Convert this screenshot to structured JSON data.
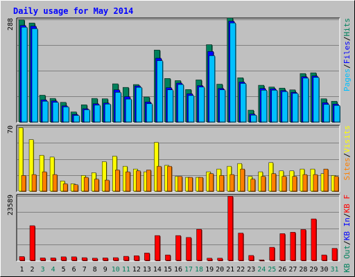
{
  "chart_data": {
    "type": "bar",
    "title": "Daily usage for May 2014",
    "categories": [
      "1",
      "2",
      "3",
      "4",
      "5",
      "6",
      "7",
      "8",
      "9",
      "10",
      "11",
      "12",
      "13",
      "14",
      "15",
      "16",
      "17",
      "18",
      "19",
      "20",
      "21",
      "22",
      "23",
      "24",
      "25",
      "26",
      "27",
      "28",
      "29",
      "30",
      "31"
    ],
    "weekend_days": [
      3,
      4,
      10,
      11,
      17,
      18,
      24,
      25,
      31
    ],
    "panels": [
      {
        "id": "top",
        "ymax_label": "288",
        "ylim": [
          0,
          288
        ],
        "legend": [
          {
            "text": "Hits",
            "color": "#00805c"
          },
          {
            "text": "/",
            "color": "#000000"
          },
          {
            "text": "Files",
            "color": "#0000ff"
          },
          {
            "text": "/",
            "color": "#000000"
          },
          {
            "text": "Pages",
            "color": "#00c0ff"
          }
        ],
        "series": [
          {
            "name": "Hits",
            "color": "#00805c",
            "values": [
              287,
              278,
              75,
              66,
              55,
              28,
              48,
              66,
              65,
              107,
              97,
              105,
              70,
              202,
              122,
              116,
              91,
              118,
              217,
              106,
              292,
              124,
              33,
              103,
              98,
              95,
              90,
              136,
              138,
              65,
              58
            ]
          },
          {
            "name": "Files",
            "color": "#0000ff",
            "values": [
              271,
              269,
              62,
              59,
              45,
              21,
              37,
              51,
              53,
              90,
              71,
              101,
              56,
              179,
              96,
              109,
              79,
              102,
              198,
              94,
              283,
              112,
              22,
              94,
              93,
              88,
              83,
              127,
              129,
              54,
              50
            ]
          },
          {
            "name": "Pages",
            "color": "#00c0ff",
            "values": [
              266,
              262,
              58,
              55,
              42,
              18,
              34,
              47,
              50,
              83,
              64,
              97,
              51,
              172,
              90,
              105,
              74,
              98,
              186,
              90,
              278,
              108,
              19,
              89,
              89,
              85,
              80,
              123,
              125,
              49,
              46
            ]
          }
        ]
      },
      {
        "id": "mid",
        "ymax_label": "70",
        "ylim": [
          0,
          70
        ],
        "legend": [
          {
            "text": "Visits",
            "color": "#ffff00"
          },
          {
            "text": "/",
            "color": "#000000"
          },
          {
            "text": "Sites",
            "color": "#ff8000"
          }
        ],
        "series": [
          {
            "name": "Visits",
            "color": "#ffff00",
            "values": [
              69,
              56,
              39,
              37,
              11,
              8,
              17,
              20,
              32,
              38,
              27,
              24,
              21,
              53,
              28,
              16,
              15,
              15,
              21,
              24,
              27,
              30,
              16,
              21,
              31,
              22,
              22,
              24,
              24,
              19,
              17
            ]
          },
          {
            "name": "Sites",
            "color": "#ff8000",
            "values": [
              17,
              18,
              21,
              18,
              8,
              7,
              15,
              13,
              12,
              23,
              21,
              22,
              23,
              27,
              27,
              16,
              15,
              15,
              19,
              17,
              18,
              24,
              13,
              16,
              19,
              16,
              16,
              18,
              18,
              24,
              16
            ]
          }
        ]
      },
      {
        "id": "bottom",
        "ymax_label": "23589",
        "ylim": [
          0,
          23589
        ],
        "legend": [
          {
            "text": "KB F",
            "color": "#ff0000"
          },
          {
            "text": "/",
            "color": "#000000"
          },
          {
            "text": "KB In",
            "color": "#0000ff"
          },
          {
            "text": "/",
            "color": "#000000"
          },
          {
            "text": "KB Out",
            "color": "#00805c"
          }
        ],
        "series": [
          {
            "name": "KB F",
            "color": "#ff0000",
            "values": [
              1400,
              12700,
              900,
              900,
              1300,
              1300,
              1000,
              800,
              900,
              1000,
              1500,
              1700,
              2700,
              9100,
              2000,
              9100,
              8400,
              11400,
              800,
              800,
              23500,
              10000,
              1800,
              200,
              4800,
              9800,
              10300,
              11300,
              15200,
              2000,
              4400
            ]
          }
        ]
      }
    ]
  }
}
